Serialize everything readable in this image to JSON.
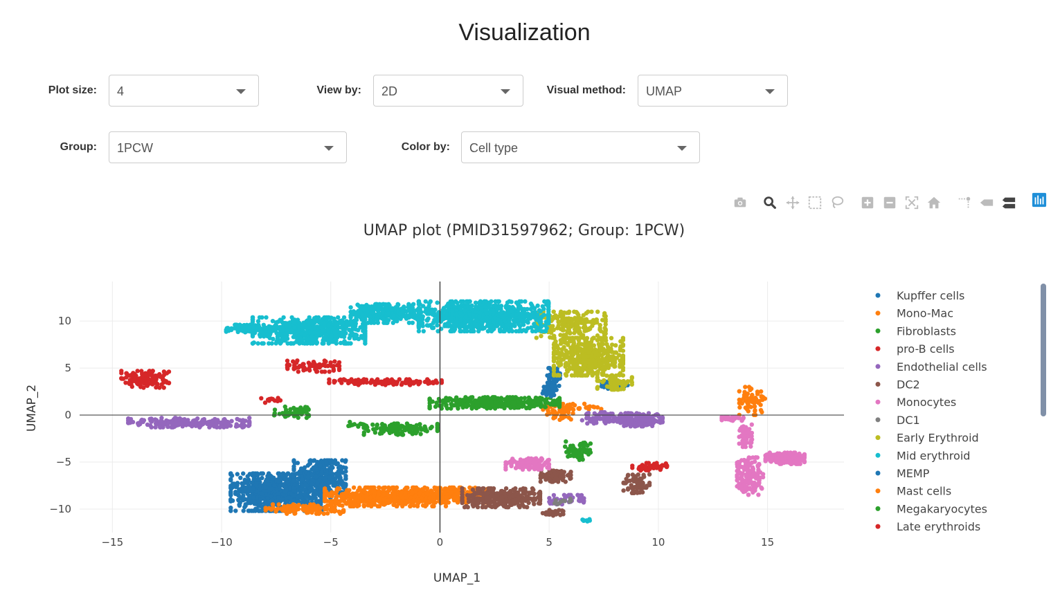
{
  "page_title": "Visualization",
  "controls": {
    "plot_size": {
      "label": "Plot size:",
      "value": "4"
    },
    "view_by": {
      "label": "View by:",
      "value": "2D"
    },
    "visual_method": {
      "label": "Visual method:",
      "value": "UMAP"
    },
    "group": {
      "label": "Group:",
      "value": "1PCW"
    },
    "color_by": {
      "label": "Color by:",
      "value": "Cell type"
    }
  },
  "modebar": {
    "icons": [
      "camera-icon",
      "zoom-icon",
      "pan-icon",
      "box-select-icon",
      "lasso-select-icon",
      "zoom-in-icon",
      "zoom-out-icon",
      "autoscale-icon",
      "reset-axes-icon",
      "spike-lines-icon",
      "hover-closest-icon",
      "hover-compare-icon",
      "plotly-logo-icon"
    ],
    "active_color": "#444444",
    "inactive_color": "#bbbbbb",
    "logo_color": "#3f4f75"
  },
  "chart_data": {
    "type": "scatter",
    "title": "UMAP plot (PMID31597962; Group: 1PCW)",
    "xlabel": "UMAP_1",
    "ylabel": "UMAP_2",
    "xlim": [
      -16.5,
      18.5
    ],
    "ylim": [
      -12.5,
      14.2
    ],
    "xticks": [
      -15,
      -10,
      -5,
      0,
      5,
      10,
      15
    ],
    "xtick_labels": [
      "−15",
      "−10",
      "−5",
      "0",
      "5",
      "10",
      "15"
    ],
    "yticks": [
      10,
      5,
      0,
      -5,
      -10
    ],
    "ytick_labels": [
      "10",
      "5",
      "0",
      "−5",
      "−10"
    ],
    "grid": true,
    "zero_lines": true,
    "legend_position": "right",
    "series": [
      {
        "name": "Kupffer cells",
        "color": "#1f77b4",
        "clusters": [
          {
            "cx": -7.5,
            "cy": -8.2,
            "rx": 2.1,
            "ry": 2.0,
            "n": 700
          },
          {
            "cx": -5.5,
            "cy": -6.8,
            "rx": 1.2,
            "ry": 2.0,
            "n": 300
          },
          {
            "cx": 5.2,
            "cy": 3.8,
            "rx": 0.3,
            "ry": 1.2,
            "n": 60
          },
          {
            "cx": 8.0,
            "cy": 3.2,
            "rx": 0.6,
            "ry": 0.4,
            "n": 40
          }
        ]
      },
      {
        "name": "Mono-Mac",
        "color": "#ff7f0e",
        "clusters": [
          {
            "cx": -2.5,
            "cy": -8.7,
            "rx": 2.8,
            "ry": 1.0,
            "n": 500
          },
          {
            "cx": 0.8,
            "cy": -8.5,
            "rx": 1.4,
            "ry": 0.8,
            "n": 200
          },
          {
            "cx": -6.2,
            "cy": -10.0,
            "rx": 1.8,
            "ry": 0.5,
            "n": 100
          },
          {
            "cx": 6.0,
            "cy": 0.8,
            "rx": 1.4,
            "ry": 0.4,
            "n": 50
          },
          {
            "cx": 14.3,
            "cy": 1.5,
            "rx": 0.6,
            "ry": 1.5,
            "n": 60
          }
        ]
      },
      {
        "name": "Fibroblasts",
        "color": "#2ca02c",
        "clusters": [
          {
            "cx": 2.5,
            "cy": 1.3,
            "rx": 3.0,
            "ry": 0.6,
            "n": 350
          },
          {
            "cx": -1.8,
            "cy": -1.5,
            "rx": 1.7,
            "ry": 0.6,
            "n": 120
          },
          {
            "cx": -6.8,
            "cy": 0.3,
            "rx": 0.8,
            "ry": 0.6,
            "n": 60
          },
          {
            "cx": 6.3,
            "cy": -3.8,
            "rx": 0.6,
            "ry": 1.0,
            "n": 60
          }
        ]
      },
      {
        "name": "pro-B cells",
        "color": "#d62728",
        "clusters": [
          {
            "cx": -13.5,
            "cy": 3.8,
            "rx": 1.1,
            "ry": 0.9,
            "n": 120
          },
          {
            "cx": -2.5,
            "cy": 3.5,
            "rx": 2.6,
            "ry": 0.3,
            "n": 120
          },
          {
            "cx": -5.8,
            "cy": 5.2,
            "rx": 1.2,
            "ry": 0.6,
            "n": 80
          },
          {
            "cx": 9.6,
            "cy": -5.5,
            "rx": 0.8,
            "ry": 0.4,
            "n": 40
          }
        ]
      },
      {
        "name": "Endothelial cells",
        "color": "#9467bd",
        "clusters": [
          {
            "cx": -11.5,
            "cy": -0.8,
            "rx": 2.8,
            "ry": 0.5,
            "n": 200
          },
          {
            "cx": 9.2,
            "cy": -0.5,
            "rx": 1.0,
            "ry": 0.7,
            "n": 200
          },
          {
            "cx": 7.5,
            "cy": -0.3,
            "rx": 1.0,
            "ry": 0.6,
            "n": 80
          },
          {
            "cx": 5.8,
            "cy": -9.0,
            "rx": 0.8,
            "ry": 0.5,
            "n": 40
          }
        ]
      },
      {
        "name": "DC2",
        "color": "#8c564b",
        "clusters": [
          {
            "cx": 2.8,
            "cy": -8.8,
            "rx": 1.8,
            "ry": 1.0,
            "n": 300
          },
          {
            "cx": 5.3,
            "cy": -6.5,
            "rx": 0.7,
            "ry": 0.6,
            "n": 80
          },
          {
            "cx": 9.0,
            "cy": -7.3,
            "rx": 0.6,
            "ry": 1.0,
            "n": 60
          },
          {
            "cx": 5.2,
            "cy": -10.4,
            "rx": 0.5,
            "ry": 0.3,
            "n": 30
          }
        ]
      },
      {
        "name": "Monocytes",
        "color": "#e377c2",
        "clusters": [
          {
            "cx": 15.8,
            "cy": -4.6,
            "rx": 0.9,
            "ry": 0.6,
            "n": 200
          },
          {
            "cx": 14.2,
            "cy": -6.5,
            "rx": 0.6,
            "ry": 2.0,
            "n": 150
          },
          {
            "cx": 14.0,
            "cy": -2.2,
            "rx": 0.3,
            "ry": 1.2,
            "n": 60
          },
          {
            "cx": 4.0,
            "cy": -5.2,
            "rx": 1.0,
            "ry": 0.6,
            "n": 100
          },
          {
            "cx": 13.4,
            "cy": -0.4,
            "rx": 0.5,
            "ry": 0.2,
            "n": 30
          }
        ]
      },
      {
        "name": "DC1",
        "color": "#7f7f7f",
        "clusters": [
          {
            "cx": 5.6,
            "cy": -9.2,
            "rx": 0.4,
            "ry": 0.3,
            "n": 10
          }
        ]
      },
      {
        "name": "Early Erythroid",
        "color": "#bcbd22",
        "clusters": [
          {
            "cx": 6.8,
            "cy": 6.2,
            "rx": 1.6,
            "ry": 2.0,
            "n": 450
          },
          {
            "cx": 6.0,
            "cy": 9.6,
            "rx": 1.6,
            "ry": 1.4,
            "n": 200
          },
          {
            "cx": 8.0,
            "cy": 3.5,
            "rx": 0.8,
            "ry": 0.8,
            "n": 80
          }
        ]
      },
      {
        "name": "Mid erythroid",
        "color": "#17becf",
        "clusters": [
          {
            "cx": 2.0,
            "cy": 10.5,
            "rx": 3.0,
            "ry": 1.6,
            "n": 800
          },
          {
            "cx": -6.0,
            "cy": 9.0,
            "rx": 2.6,
            "ry": 1.4,
            "n": 600
          },
          {
            "cx": -2.5,
            "cy": 10.8,
            "rx": 1.6,
            "ry": 1.0,
            "n": 300
          },
          {
            "cx": -8.8,
            "cy": 9.2,
            "rx": 1.0,
            "ry": 0.4,
            "n": 100
          },
          {
            "cx": 6.7,
            "cy": -11.2,
            "rx": 0.2,
            "ry": 0.2,
            "n": 8
          }
        ]
      },
      {
        "name": "MEMP",
        "color": "#1f77b4",
        "clusters": [
          {
            "cx": 5.0,
            "cy": 2.5,
            "rx": 0.3,
            "ry": 0.5,
            "n": 25
          }
        ]
      },
      {
        "name": "Mast cells",
        "color": "#ff7f0e",
        "clusters": [
          {
            "cx": 5.5,
            "cy": 0.0,
            "rx": 0.6,
            "ry": 0.5,
            "n": 25
          }
        ]
      },
      {
        "name": "Megakaryocytes",
        "color": "#2ca02c",
        "clusters": [
          {
            "cx": -3.8,
            "cy": -1.0,
            "rx": 0.4,
            "ry": 0.3,
            "n": 10
          }
        ]
      },
      {
        "name": "Late erythroids",
        "color": "#d62728",
        "clusters": [
          {
            "cx": -7.8,
            "cy": 1.6,
            "rx": 0.5,
            "ry": 0.3,
            "n": 12
          }
        ]
      }
    ]
  }
}
